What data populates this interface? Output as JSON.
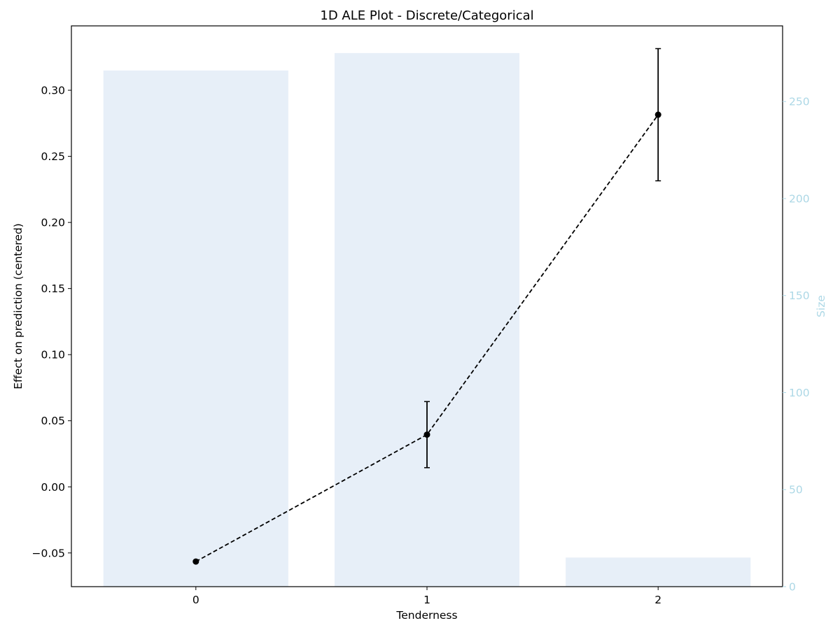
{
  "chart_data": {
    "type": "line",
    "title": "1D ALE Plot - Discrete/Categorical",
    "xlabel": "Tenderness",
    "ylabel": "Effect on prediction (centered)",
    "y2label": "Size",
    "categories": [
      "0",
      "1",
      "2"
    ],
    "x_ticks": [
      "0",
      "1",
      "2"
    ],
    "ylim": [
      -0.0755,
      0.3487
    ],
    "y_ticks": [
      -0.05,
      0.0,
      0.05,
      0.1,
      0.15,
      0.2,
      0.25,
      0.3
    ],
    "y_tick_labels": [
      "−0.05",
      "0.00",
      "0.05",
      "0.10",
      "0.15",
      "0.20",
      "0.25",
      "0.30"
    ],
    "y2lim": [
      0,
      289
    ],
    "y2_ticks": [
      0,
      50,
      100,
      150,
      200,
      250
    ],
    "y2_tick_labels": [
      "0",
      "50",
      "100",
      "150",
      "200",
      "250"
    ],
    "series": [
      {
        "type": "line",
        "style": "dashed",
        "color": "#000000",
        "values": [
          -0.0565,
          0.0395,
          0.2815
        ],
        "error_low": [
          null,
          0.0145,
          0.2315
        ],
        "error_high": [
          null,
          0.0645,
          0.3315
        ]
      },
      {
        "type": "bar",
        "axis": "right",
        "color": "#e7eff8",
        "values": [
          266,
          275,
          15
        ]
      }
    ],
    "grid": false,
    "tick_color_right": "#add8e6"
  }
}
